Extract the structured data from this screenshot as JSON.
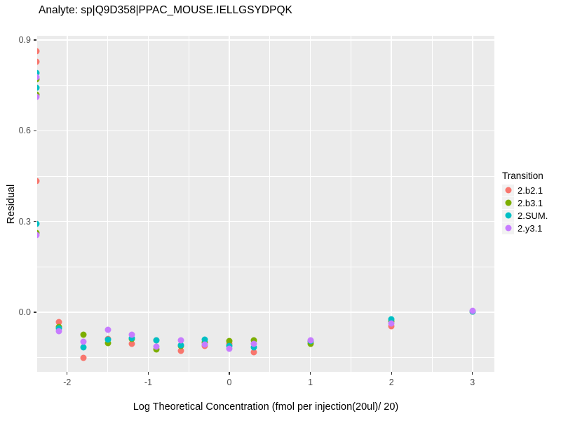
{
  "title": "Analyte: sp|Q9D358|PPAC_MOUSE.IELLGSYDPQK",
  "chart_data": {
    "type": "scatter",
    "title": "Analyte: sp|Q9D358|PPAC_MOUSE.IELLGSYDPQK",
    "xlabel": "Log Theoretical Concentration (fmol per injection(20ul)/ 20)",
    "ylabel": "Residual",
    "x_ticks": [
      -2,
      -1,
      0,
      1,
      2,
      3
    ],
    "y_ticks": [
      0.0,
      0.3,
      0.6,
      0.9
    ],
    "x_minor_ticks": [
      -1.5,
      -0.5,
      0.5,
      1.5,
      2.5
    ],
    "y_minor_ticks": [
      -0.15,
      0.15,
      0.45,
      0.75
    ],
    "xlim": [
      -2.37,
      3.27
    ],
    "ylim": [
      -0.197,
      0.914
    ],
    "grid": true,
    "panel_bg": "#EBEBEB",
    "grid_color": "#FFFFFF",
    "tick_label_color": "#4D4D4D",
    "legend": {
      "title": "Transition",
      "position": "right"
    },
    "series": [
      {
        "name": "2.b2.1",
        "color": "#F8766D",
        "points": [
          [
            -2.38,
            0.862
          ],
          [
            -2.38,
            0.828
          ],
          [
            -2.38,
            0.434
          ],
          [
            -2.1,
            -0.033
          ],
          [
            -1.8,
            -0.15
          ],
          [
            -1.5,
            -0.088
          ],
          [
            -1.2,
            -0.104
          ],
          [
            -0.9,
            -0.092
          ],
          [
            -0.6,
            -0.128
          ],
          [
            -0.3,
            -0.111
          ],
          [
            0.0,
            -0.105
          ],
          [
            0.3,
            -0.132
          ],
          [
            1.0,
            -0.097
          ],
          [
            2.0,
            -0.046
          ],
          [
            3.0,
            0.002
          ]
        ]
      },
      {
        "name": "2.b3.1",
        "color": "#7CAE00",
        "points": [
          [
            -2.38,
            0.77
          ],
          [
            -2.38,
            0.719
          ],
          [
            -2.38,
            0.262
          ],
          [
            -2.1,
            -0.049
          ],
          [
            -1.8,
            -0.074
          ],
          [
            -1.5,
            -0.102
          ],
          [
            -1.2,
            -0.088
          ],
          [
            -0.9,
            -0.123
          ],
          [
            -0.6,
            -0.112
          ],
          [
            -0.3,
            -0.1
          ],
          [
            0.0,
            -0.095
          ],
          [
            0.3,
            -0.093
          ],
          [
            1.0,
            -0.104
          ],
          [
            2.0,
            -0.03
          ],
          [
            3.0,
            0.002
          ]
        ]
      },
      {
        "name": "2.SUM.",
        "color": "#00BFC4",
        "points": [
          [
            -2.38,
            0.792
          ],
          [
            -2.38,
            0.742
          ],
          [
            -2.38,
            0.292
          ],
          [
            -2.1,
            -0.054
          ],
          [
            -1.8,
            -0.115
          ],
          [
            -1.5,
            -0.09
          ],
          [
            -1.2,
            -0.085
          ],
          [
            -0.9,
            -0.093
          ],
          [
            -0.6,
            -0.109
          ],
          [
            -0.3,
            -0.09
          ],
          [
            0.0,
            -0.111
          ],
          [
            0.3,
            -0.116
          ],
          [
            1.0,
            -0.096
          ],
          [
            2.0,
            -0.022
          ],
          [
            3.0,
            0.003
          ]
        ]
      },
      {
        "name": "2.y3.1",
        "color": "#C77CFF",
        "points": [
          [
            -2.38,
            0.776
          ],
          [
            -2.38,
            0.712
          ],
          [
            -2.38,
            0.256
          ],
          [
            -2.1,
            -0.062
          ],
          [
            -1.8,
            -0.097
          ],
          [
            -1.5,
            -0.058
          ],
          [
            -1.2,
            -0.073
          ],
          [
            -0.9,
            -0.114
          ],
          [
            -0.6,
            -0.093
          ],
          [
            -0.3,
            -0.107
          ],
          [
            0.0,
            -0.121
          ],
          [
            0.3,
            -0.104
          ],
          [
            1.0,
            -0.093
          ],
          [
            2.0,
            -0.036
          ],
          [
            3.0,
            0.004
          ]
        ]
      }
    ]
  }
}
